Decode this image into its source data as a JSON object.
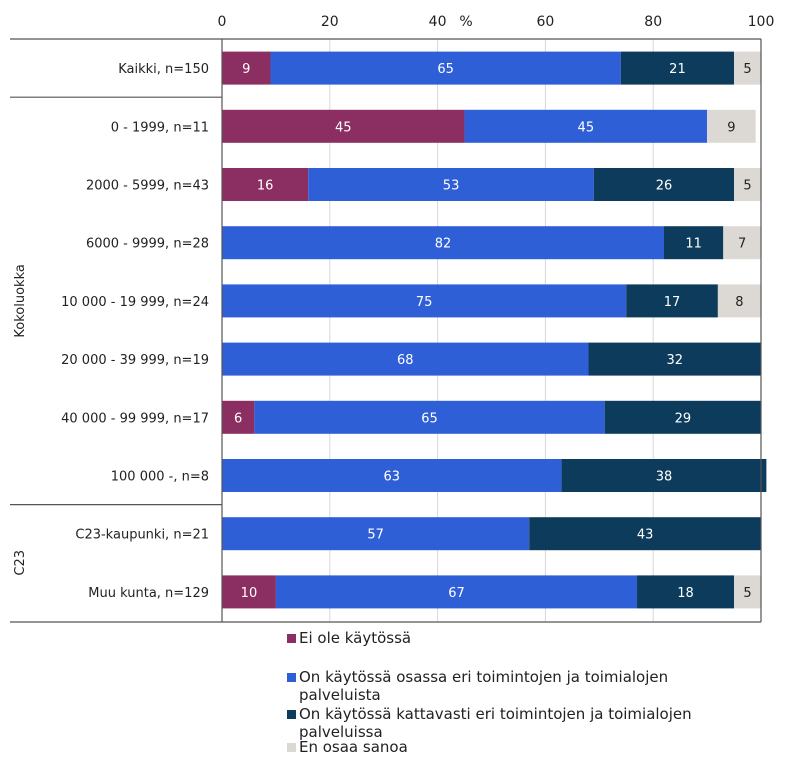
{
  "chart_data": {
    "type": "bar",
    "orientation": "horizontal",
    "stacked": true,
    "x_unit_label": "%",
    "xlim": [
      0,
      100
    ],
    "x_ticks": [
      0,
      20,
      40,
      60,
      80,
      100
    ],
    "grid": true,
    "legend_position": "bottom",
    "categories": [
      "Kaikki, n=150",
      "0 - 1999, n=11",
      "2000 - 5999, n=43",
      "6000 - 9999, n=28",
      "10 000 - 19 999, n=24",
      "20 000 - 39 999, n=19",
      "40 000 - 99 999, n=17",
      "100 000 -, n=8",
      "C23-kaupunki, n=21",
      "Muu kunta, n=129"
    ],
    "groups": [
      {
        "label": "",
        "rows": [
          0
        ]
      },
      {
        "label": "Kokoluokka",
        "rows": [
          1,
          2,
          3,
          4,
          5,
          6,
          7
        ]
      },
      {
        "label": "C23",
        "rows": [
          8,
          9
        ]
      }
    ],
    "series": [
      {
        "name": "Ei ole käytössä",
        "color": "#8b2e62",
        "label_color": "#ffffff",
        "values": [
          9,
          45,
          16,
          0,
          0,
          0,
          6,
          0,
          0,
          10
        ]
      },
      {
        "name": "On käytössä osassa eri toimintojen ja toimialojen palveluista",
        "color": "#2f5fd6",
        "label_color": "#ffffff",
        "values": [
          65,
          45,
          53,
          82,
          75,
          68,
          65,
          63,
          57,
          67
        ]
      },
      {
        "name": "On käytössä kattavasti eri toimintojen ja toimialojen palveluissa",
        "color": "#0d3b5c",
        "label_color": "#ffffff",
        "values": [
          21,
          0,
          26,
          11,
          17,
          32,
          29,
          38,
          43,
          18
        ]
      },
      {
        "name": "En osaa sanoa",
        "color": "#dcd9d5",
        "label_color": "#222222",
        "values": [
          5,
          9,
          5,
          7,
          8,
          0,
          0,
          0,
          0,
          5
        ]
      }
    ]
  }
}
